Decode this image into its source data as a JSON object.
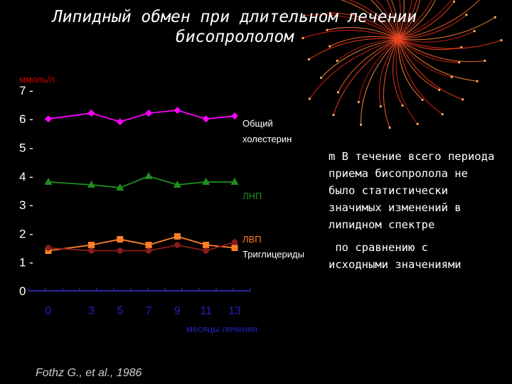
{
  "slide": {
    "title_line1": "Липидный обмен при длительном лечении",
    "title_line2": "бисопрололом",
    "notes": [
      "m В течение всего периода",
      "приема бисопролола не",
      "было статистически",
      "значимых изменений в",
      "липидном спектре",
      " по сравнению с",
      "исходными значениями"
    ],
    "source": "Fothz G., et al., 1986"
  },
  "chart_data": {
    "type": "line",
    "title": "",
    "ylabel": "ммоль/л",
    "xlabel": "месяцы лечения",
    "x": [
      0,
      3,
      5,
      7,
      9,
      11,
      13
    ],
    "ylim": [
      0,
      7
    ],
    "y_ticks": [
      "0",
      "1 -",
      "2 -",
      "3 -",
      "4 -",
      "5 -",
      "6 -",
      "7 -"
    ],
    "x_ticks": [
      "0",
      "3",
      "5",
      "7",
      "9",
      "11",
      "13"
    ],
    "grid": false,
    "series": [
      {
        "name": "Общий холестерин",
        "name_line1": "Общий",
        "name_line2": "холестерин",
        "values": [
          6.0,
          6.2,
          5.9,
          6.2,
          6.3,
          6.0,
          6.1
        ],
        "color": "#ff00ff",
        "marker": "diamond"
      },
      {
        "name": "ЛНП",
        "values": [
          3.8,
          3.7,
          3.6,
          4.0,
          3.7,
          3.8,
          3.8
        ],
        "color": "#1f8f1f",
        "marker": "triangle"
      },
      {
        "name": "ЛВП",
        "values": [
          1.4,
          1.6,
          1.8,
          1.6,
          1.9,
          1.6,
          1.5
        ],
        "color": "#ff7f27",
        "marker": "square"
      },
      {
        "name": "Триглицериды",
        "values": [
          1.5,
          1.4,
          1.4,
          1.4,
          1.6,
          1.4,
          1.7
        ],
        "color": "#8b1a1a",
        "marker": "circle"
      }
    ]
  }
}
